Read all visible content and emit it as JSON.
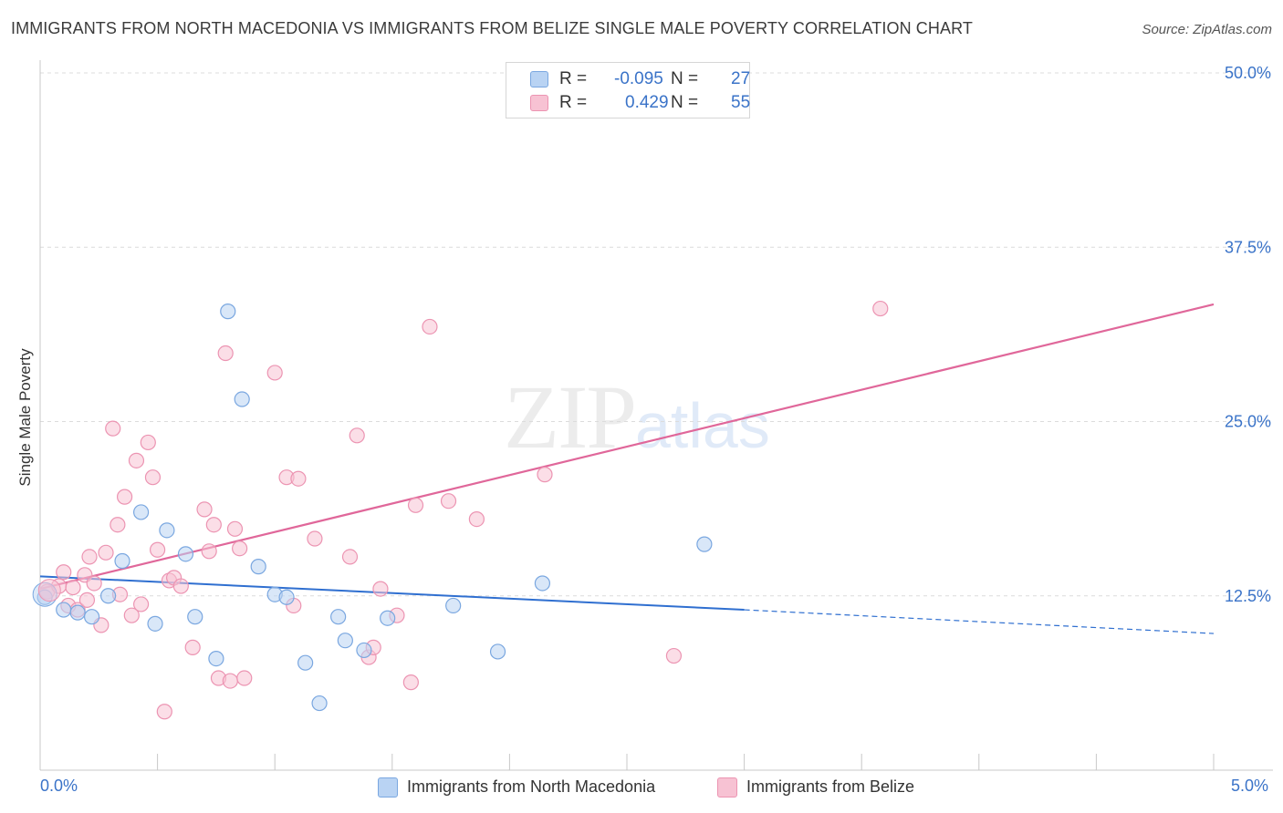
{
  "header": {
    "title": "IMMIGRANTS FROM NORTH MACEDONIA VS IMMIGRANTS FROM BELIZE SINGLE MALE POVERTY CORRELATION CHART",
    "source": "Source: ZipAtlas.com"
  },
  "watermark": {
    "zip": "ZIP",
    "atlas": "atlas"
  },
  "legend": {
    "r_label": "R =",
    "n_label": "N =",
    "macedonia": {
      "r": "-0.095",
      "n": "27"
    },
    "belize": {
      "r": "0.429",
      "n": "55"
    }
  },
  "bottom_legend": {
    "macedonia": "Immigrants from North Macedonia",
    "belize": "Immigrants from Belize"
  },
  "colors": {
    "macedonia_fill": "#b9d3f3",
    "macedonia_stroke": "#7aa7e0",
    "macedonia_line": "#2f6fd0",
    "belize_fill": "#f7c2d3",
    "belize_stroke": "#ec94b2",
    "belize_line": "#e0679a",
    "axis_text": "#3a73c8",
    "grid": "#dcdcdc"
  },
  "chart_data": {
    "type": "scatter",
    "title": "IMMIGRANTS FROM NORTH MACEDONIA VS IMMIGRANTS FROM BELIZE SINGLE MALE POVERTY CORRELATION CHART",
    "xlabel": "",
    "ylabel": "Single Male Poverty",
    "xlim": [
      0,
      5.0
    ],
    "ylim": [
      0,
      50.0
    ],
    "x_tick_labels": [
      "0.0%",
      "5.0%"
    ],
    "y_ticks": [
      12.5,
      25.0,
      37.5,
      50.0
    ],
    "y_tick_labels": [
      "12.5%",
      "25.0%",
      "37.5%",
      "50.0%"
    ],
    "series": [
      {
        "name": "Immigrants from North Macedonia",
        "points": [
          [
            0.02,
            12.4
          ],
          [
            0.1,
            11.5
          ],
          [
            0.16,
            11.3
          ],
          [
            0.22,
            11.0
          ],
          [
            0.29,
            12.5
          ],
          [
            0.35,
            15.0
          ],
          [
            0.43,
            18.5
          ],
          [
            0.49,
            10.5
          ],
          [
            0.54,
            17.2
          ],
          [
            0.62,
            15.5
          ],
          [
            0.66,
            11.0
          ],
          [
            0.75,
            8.0
          ],
          [
            0.8,
            32.9
          ],
          [
            0.86,
            26.6
          ],
          [
            0.93,
            14.6
          ],
          [
            1.0,
            12.6
          ],
          [
            1.05,
            12.4
          ],
          [
            1.13,
            7.7
          ],
          [
            1.19,
            4.8
          ],
          [
            1.27,
            11.0
          ],
          [
            1.3,
            9.3
          ],
          [
            1.38,
            8.6
          ],
          [
            1.48,
            10.9
          ],
          [
            1.76,
            11.8
          ],
          [
            1.95,
            8.5
          ],
          [
            2.14,
            13.4
          ],
          [
            2.83,
            16.2
          ]
        ],
        "trend": {
          "x0": 0.0,
          "y0": 13.9,
          "x1": 3.0,
          "y1": 11.5,
          "dashed_to": [
            5.0,
            9.8
          ]
        }
      },
      {
        "name": "Immigrants from Belize",
        "points": [
          [
            0.03,
            12.8
          ],
          [
            0.08,
            13.2
          ],
          [
            0.1,
            14.2
          ],
          [
            0.12,
            11.8
          ],
          [
            0.14,
            13.1
          ],
          [
            0.16,
            11.5
          ],
          [
            0.19,
            14.0
          ],
          [
            0.21,
            15.3
          ],
          [
            0.23,
            13.4
          ],
          [
            0.26,
            10.4
          ],
          [
            0.28,
            15.6
          ],
          [
            0.31,
            24.5
          ],
          [
            0.33,
            17.6
          ],
          [
            0.36,
            19.6
          ],
          [
            0.39,
            11.1
          ],
          [
            0.41,
            22.2
          ],
          [
            0.43,
            11.9
          ],
          [
            0.46,
            23.5
          ],
          [
            0.48,
            21.0
          ],
          [
            0.5,
            15.8
          ],
          [
            0.53,
            4.2
          ],
          [
            0.55,
            13.6
          ],
          [
            0.57,
            13.8
          ],
          [
            0.6,
            13.2
          ],
          [
            0.65,
            8.8
          ],
          [
            0.7,
            18.7
          ],
          [
            0.72,
            15.7
          ],
          [
            0.74,
            17.6
          ],
          [
            0.76,
            6.6
          ],
          [
            0.79,
            29.9
          ],
          [
            0.81,
            6.4
          ],
          [
            0.83,
            17.3
          ],
          [
            0.85,
            15.9
          ],
          [
            0.87,
            6.6
          ],
          [
            1.0,
            28.5
          ],
          [
            1.05,
            21.0
          ],
          [
            1.08,
            11.8
          ],
          [
            1.1,
            20.9
          ],
          [
            1.17,
            16.6
          ],
          [
            1.32,
            15.3
          ],
          [
            1.35,
            24.0
          ],
          [
            1.4,
            8.1
          ],
          [
            1.42,
            8.8
          ],
          [
            1.45,
            13.0
          ],
          [
            1.52,
            11.1
          ],
          [
            1.58,
            6.3
          ],
          [
            1.6,
            19.0
          ],
          [
            1.66,
            31.8
          ],
          [
            1.74,
            19.3
          ],
          [
            1.86,
            18.0
          ],
          [
            2.15,
            21.2
          ],
          [
            2.7,
            8.2
          ],
          [
            3.58,
            33.1
          ],
          [
            0.2,
            12.2
          ],
          [
            0.34,
            12.6
          ]
        ],
        "trend": {
          "x0": 0.0,
          "y0": 13.0,
          "x1": 5.0,
          "y1": 33.4
        }
      }
    ]
  }
}
